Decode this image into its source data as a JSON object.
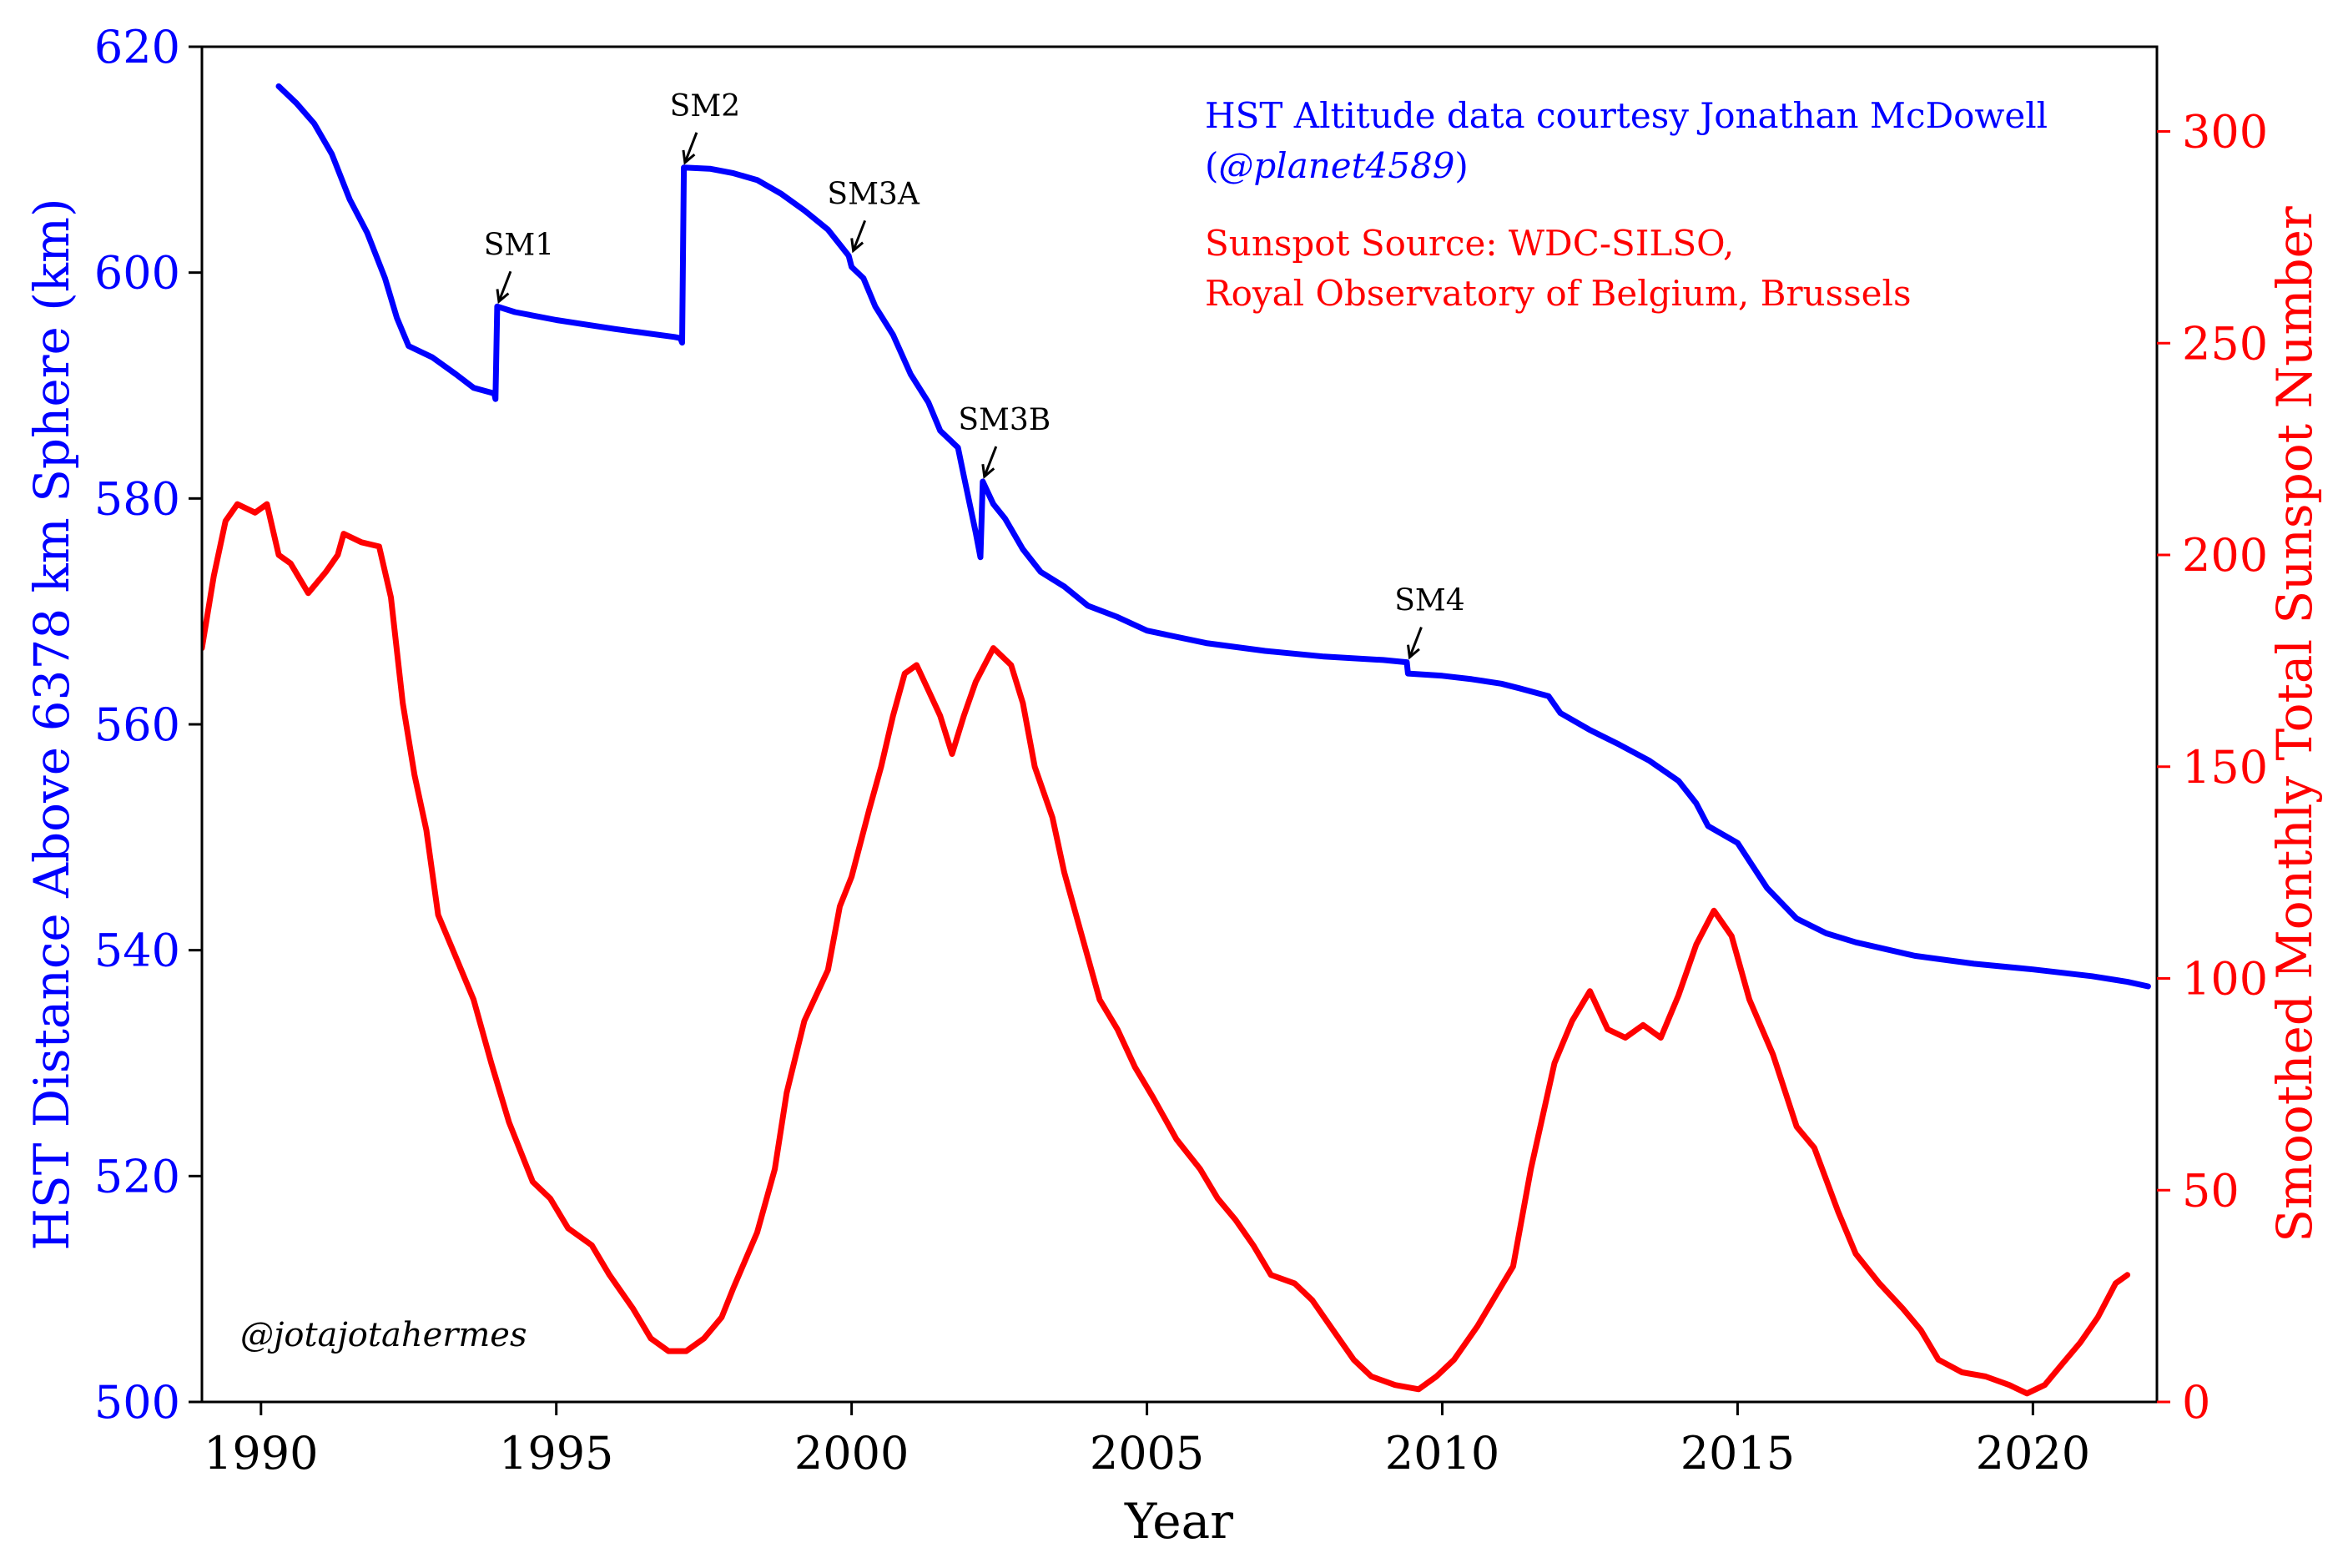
{
  "chart_data": {
    "type": "line",
    "xlabel": "Year",
    "ylabel_left": "HST Distance Above 6378 km Sphere (km)",
    "ylabel_right": "Smoothed Monthly Total Sunspot Number",
    "xlim": [
      1989,
      2022.1
    ],
    "ylim_left": [
      500,
      620
    ],
    "ylim_right": [
      0,
      320
    ],
    "x_ticks": [
      1990,
      1995,
      2000,
      2005,
      2010,
      2015,
      2020
    ],
    "y_ticks_left": [
      500,
      520,
      540,
      560,
      580,
      600,
      620
    ],
    "y_ticks_right": [
      0,
      50,
      100,
      150,
      200,
      250,
      300
    ],
    "grid": false,
    "series": [
      {
        "axis": "left",
        "color": "#0000ff",
        "points": [
          [
            1990.3,
            616.5
          ],
          [
            1990.6,
            615.0
          ],
          [
            1990.9,
            613.2
          ],
          [
            1991.2,
            610.5
          ],
          [
            1991.5,
            606.5
          ],
          [
            1991.8,
            603.5
          ],
          [
            1992.1,
            599.5
          ],
          [
            1992.3,
            596.0
          ],
          [
            1992.5,
            593.5
          ],
          [
            1992.9,
            592.5
          ],
          [
            1993.3,
            591.0
          ],
          [
            1993.6,
            589.8
          ],
          [
            1993.95,
            589.3
          ],
          [
            1993.97,
            588.8
          ],
          [
            1994.0,
            597.0
          ],
          [
            1994.3,
            596.5
          ],
          [
            1995.0,
            595.8
          ],
          [
            1996.0,
            595.0
          ],
          [
            1997.0,
            594.3
          ],
          [
            1997.1,
            594.2
          ],
          [
            1997.13,
            593.8
          ],
          [
            1997.16,
            609.3
          ],
          [
            1997.6,
            609.2
          ],
          [
            1998.0,
            608.8
          ],
          [
            1998.4,
            608.2
          ],
          [
            1998.8,
            607.0
          ],
          [
            1999.2,
            605.5
          ],
          [
            1999.6,
            603.8
          ],
          [
            1999.95,
            601.5
          ],
          [
            2000.0,
            600.5
          ],
          [
            2000.2,
            599.5
          ],
          [
            2000.4,
            597.0
          ],
          [
            2000.7,
            594.5
          ],
          [
            2001.0,
            591.0
          ],
          [
            2001.3,
            588.5
          ],
          [
            2001.5,
            586.0
          ],
          [
            2001.8,
            584.5
          ],
          [
            2001.9,
            582.0
          ],
          [
            2002.0,
            579.5
          ],
          [
            2002.1,
            577.0
          ],
          [
            2002.18,
            574.8
          ],
          [
            2002.22,
            581.5
          ],
          [
            2002.4,
            579.5
          ],
          [
            2002.6,
            578.2
          ],
          [
            2002.9,
            575.5
          ],
          [
            2003.2,
            573.5
          ],
          [
            2003.6,
            572.2
          ],
          [
            2004.0,
            570.5
          ],
          [
            2004.5,
            569.5
          ],
          [
            2005.0,
            568.3
          ],
          [
            2006.0,
            567.2
          ],
          [
            2007.0,
            566.5
          ],
          [
            2008.0,
            566.0
          ],
          [
            2009.0,
            565.7
          ],
          [
            2009.4,
            565.5
          ],
          [
            2009.42,
            564.5
          ],
          [
            2010.0,
            564.3
          ],
          [
            2010.5,
            564.0
          ],
          [
            2011.0,
            563.6
          ],
          [
            2011.3,
            563.2
          ],
          [
            2011.8,
            562.5
          ],
          [
            2012.0,
            561.0
          ],
          [
            2012.5,
            559.5
          ],
          [
            2013.0,
            558.2
          ],
          [
            2013.5,
            556.8
          ],
          [
            2014.0,
            555.0
          ],
          [
            2014.3,
            553.0
          ],
          [
            2014.5,
            551.0
          ],
          [
            2015.0,
            549.5
          ],
          [
            2015.5,
            545.5
          ],
          [
            2016.0,
            542.8
          ],
          [
            2016.5,
            541.5
          ],
          [
            2017.0,
            540.7
          ],
          [
            2018.0,
            539.5
          ],
          [
            2019.0,
            538.8
          ],
          [
            2020.0,
            538.3
          ],
          [
            2021.0,
            537.7
          ],
          [
            2021.6,
            537.2
          ],
          [
            2021.95,
            536.8
          ]
        ]
      },
      {
        "axis": "right",
        "color": "#ff0000",
        "points": [
          [
            1989.0,
            178
          ],
          [
            1989.2,
            195
          ],
          [
            1989.4,
            208
          ],
          [
            1989.6,
            212
          ],
          [
            1989.9,
            210
          ],
          [
            1990.1,
            212
          ],
          [
            1990.3,
            200
          ],
          [
            1990.5,
            198
          ],
          [
            1990.8,
            191
          ],
          [
            1991.1,
            196
          ],
          [
            1991.3,
            200
          ],
          [
            1991.4,
            205
          ],
          [
            1991.7,
            203
          ],
          [
            1992.0,
            202
          ],
          [
            1992.2,
            190
          ],
          [
            1992.4,
            165
          ],
          [
            1992.6,
            148
          ],
          [
            1992.8,
            135
          ],
          [
            1993.0,
            115
          ],
          [
            1993.3,
            105
          ],
          [
            1993.6,
            95
          ],
          [
            1993.9,
            80
          ],
          [
            1994.2,
            66
          ],
          [
            1994.6,
            52
          ],
          [
            1994.9,
            48
          ],
          [
            1995.2,
            41
          ],
          [
            1995.6,
            37
          ],
          [
            1995.9,
            30
          ],
          [
            1996.3,
            22
          ],
          [
            1996.6,
            15
          ],
          [
            1996.9,
            12
          ],
          [
            1997.2,
            12
          ],
          [
            1997.5,
            15
          ],
          [
            1997.8,
            20
          ],
          [
            1998.0,
            27
          ],
          [
            1998.4,
            40
          ],
          [
            1998.7,
            55
          ],
          [
            1998.9,
            73
          ],
          [
            1999.2,
            90
          ],
          [
            1999.6,
            102
          ],
          [
            1999.8,
            117
          ],
          [
            2000.0,
            124
          ],
          [
            2000.3,
            140
          ],
          [
            2000.5,
            150
          ],
          [
            2000.7,
            162
          ],
          [
            2000.9,
            172
          ],
          [
            2001.1,
            174
          ],
          [
            2001.3,
            168
          ],
          [
            2001.5,
            162
          ],
          [
            2001.7,
            153
          ],
          [
            2001.9,
            162
          ],
          [
            2002.1,
            170
          ],
          [
            2002.4,
            178
          ],
          [
            2002.7,
            174
          ],
          [
            2002.9,
            165
          ],
          [
            2003.1,
            150
          ],
          [
            2003.4,
            138
          ],
          [
            2003.6,
            125
          ],
          [
            2003.9,
            110
          ],
          [
            2004.2,
            95
          ],
          [
            2004.5,
            88
          ],
          [
            2004.8,
            79
          ],
          [
            2005.1,
            72
          ],
          [
            2005.5,
            62
          ],
          [
            2005.9,
            55
          ],
          [
            2006.2,
            48
          ],
          [
            2006.5,
            43
          ],
          [
            2006.8,
            37
          ],
          [
            2007.1,
            30
          ],
          [
            2007.5,
            28
          ],
          [
            2007.8,
            24
          ],
          [
            2008.1,
            18
          ],
          [
            2008.5,
            10
          ],
          [
            2008.8,
            6
          ],
          [
            2009.2,
            4
          ],
          [
            2009.6,
            3
          ],
          [
            2009.9,
            6
          ],
          [
            2010.2,
            10
          ],
          [
            2010.6,
            18
          ],
          [
            2010.9,
            25
          ],
          [
            2011.2,
            32
          ],
          [
            2011.5,
            55
          ],
          [
            2011.9,
            80
          ],
          [
            2012.2,
            90
          ],
          [
            2012.5,
            97
          ],
          [
            2012.8,
            88
          ],
          [
            2013.1,
            86
          ],
          [
            2013.4,
            89
          ],
          [
            2013.7,
            86
          ],
          [
            2014.0,
            96
          ],
          [
            2014.3,
            108
          ],
          [
            2014.6,
            116
          ],
          [
            2014.9,
            110
          ],
          [
            2015.2,
            95
          ],
          [
            2015.6,
            82
          ],
          [
            2016.0,
            65
          ],
          [
            2016.3,
            60
          ],
          [
            2016.7,
            45
          ],
          [
            2017.0,
            35
          ],
          [
            2017.4,
            28
          ],
          [
            2017.8,
            22
          ],
          [
            2018.1,
            17
          ],
          [
            2018.4,
            10
          ],
          [
            2018.8,
            7
          ],
          [
            2019.2,
            6
          ],
          [
            2019.6,
            4
          ],
          [
            2019.9,
            2
          ],
          [
            2020.2,
            4
          ],
          [
            2020.5,
            9
          ],
          [
            2020.8,
            14
          ],
          [
            2021.1,
            20
          ],
          [
            2021.4,
            28
          ],
          [
            2021.6,
            30
          ]
        ]
      }
    ],
    "annotations": [
      {
        "text": "SM1",
        "x": 1994.0,
        "y": 597.0
      },
      {
        "text": "SM2",
        "x": 1997.15,
        "y": 609.3
      },
      {
        "text": "SM3A",
        "x": 2000.0,
        "y": 601.5
      },
      {
        "text": "SM3B",
        "x": 2002.22,
        "y": 581.5
      },
      {
        "text": "SM4",
        "x": 2009.42,
        "y": 565.5
      }
    ]
  },
  "credits": {
    "altitude_line1": "HST Altitude data courtesy Jonathan McDowell",
    "altitude_open": "(",
    "altitude_handle": "@planet4589",
    "altitude_close": ")",
    "sunspot_line1": "Sunspot Source: WDC-SILSO,",
    "sunspot_line2": "Royal Observatory of Belgium, Brussels"
  },
  "signature": "@jotajotahermes"
}
